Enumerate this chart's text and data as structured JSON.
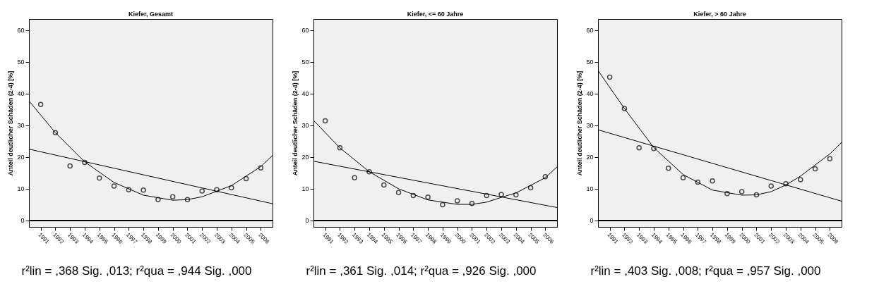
{
  "chart_data": [
    {
      "type": "scatter",
      "title": "Kiefer, Gesamt",
      "ylabel": "Anteil deutlicher Schäden (2-4) [%]",
      "marker": "circle",
      "grid": false,
      "x": [
        1991,
        1992,
        1993,
        1994,
        1995,
        1996,
        1997,
        1998,
        1999,
        2000,
        2001,
        2002,
        2003,
        2004,
        2005,
        2006
      ],
      "series": [
        {
          "color": "#000000",
          "values": [
            36.6,
            27.7,
            17.2,
            18.3,
            13.4,
            10.9,
            9.7,
            9.6,
            6.6,
            7.5,
            6.6,
            9.3,
            9.7,
            10.3,
            13.2,
            16.6
          ]
        },
        {
          "type": "line",
          "marker": "none",
          "line_style": "solid",
          "color": "#000000",
          "x": [
            1990.2,
            2006.8
          ],
          "values": [
            22.5,
            5.3
          ]
        },
        {
          "type": "line",
          "marker": "none",
          "line_style": "solid",
          "color": "#000000",
          "x": [
            1990.2,
            1992,
            1994,
            1996,
            1998,
            2000,
            2001,
            2002,
            2004,
            2006,
            2006.8
          ],
          "values": [
            37.7,
            27.7,
            18.5,
            12.0,
            8.0,
            6.4,
            6.6,
            7.5,
            11.0,
            17.0,
            20.5
          ]
        }
      ],
      "xlim": [
        1990.2,
        2006.8
      ],
      "xticks": [
        1991,
        1992,
        1993,
        1994,
        1995,
        1996,
        1997,
        1998,
        1999,
        2000,
        2001,
        2002,
        2003,
        2004,
        2005,
        2006
      ],
      "ylim": [
        -2,
        63.5
      ],
      "yticks": [
        0,
        10,
        20,
        30,
        40,
        50,
        60
      ],
      "ref_lines": [
        {
          "axis": "y",
          "value": 0,
          "color": "#000000"
        }
      ],
      "annotations": [
        "r²lin = ,368 Sig. ,013; r²qua  = ,944 Sig. ,000"
      ]
    },
    {
      "type": "scatter",
      "title": "Kiefer,  <= 60 Jahre",
      "ylabel": "Anteil deutlicher Schäden (2-4) [%]",
      "marker": "circle",
      "grid": false,
      "x": [
        1991,
        1992,
        1993,
        1994,
        1995,
        1996,
        1997,
        1998,
        1999,
        2000,
        2001,
        2002,
        2003,
        2004,
        2005,
        2006
      ],
      "series": [
        {
          "color": "#000000",
          "values": [
            31.4,
            22.9,
            13.5,
            15.4,
            11.2,
            8.8,
            7.9,
            7.4,
            5.0,
            6.2,
            5.4,
            7.9,
            8.2,
            8.1,
            10.3,
            13.8
          ]
        },
        {
          "type": "line",
          "marker": "none",
          "line_style": "solid",
          "color": "#000000",
          "x": [
            1990.2,
            2006.8
          ],
          "values": [
            18.7,
            4.1
          ]
        },
        {
          "type": "line",
          "marker": "none",
          "line_style": "solid",
          "color": "#000000",
          "x": [
            1990.2,
            1992,
            1994,
            1996,
            1998,
            2000,
            2001,
            2002,
            2003,
            2004,
            2006,
            2006.8
          ],
          "values": [
            31.6,
            22.9,
            15.4,
            10.0,
            6.5,
            5.1,
            5.1,
            5.8,
            7.3,
            8.7,
            13.5,
            16.9
          ]
        }
      ],
      "xlim": [
        1990.2,
        2006.8
      ],
      "xticks": [
        1991,
        1992,
        1993,
        1994,
        1995,
        1996,
        1997,
        1998,
        1999,
        2000,
        2001,
        2002,
        2003,
        2004,
        2005,
        2006
      ],
      "ylim": [
        -2,
        63.5
      ],
      "yticks": [
        0,
        10,
        20,
        30,
        40,
        50,
        60
      ],
      "ref_lines": [
        {
          "axis": "y",
          "value": 0,
          "color": "#000000"
        }
      ],
      "annotations": [
        "r²lin = ,361 Sig. ,014; r²qua  = ,926 Sig. ,000"
      ]
    },
    {
      "type": "scatter",
      "title": "Kiefer,  > 60 Jahre",
      "ylabel": "Anteil deutlicher Schäden (2-4) [%]",
      "marker": "circle",
      "grid": false,
      "x": [
        1991,
        1992,
        1993,
        1994,
        1995,
        1996,
        1997,
        1998,
        1999,
        2000,
        2001,
        2002,
        2003,
        2004,
        2005,
        2006
      ],
      "series": [
        {
          "color": "#000000",
          "values": [
            45.2,
            35.3,
            22.9,
            22.7,
            16.5,
            13.5,
            12.1,
            12.5,
            8.5,
            9.1,
            8.1,
            10.9,
            11.6,
            12.9,
            16.3,
            19.5
          ]
        },
        {
          "type": "line",
          "marker": "none",
          "line_style": "solid",
          "color": "#000000",
          "x": [
            1990.2,
            2006.8
          ],
          "values": [
            28.6,
            6.1
          ]
        },
        {
          "type": "line",
          "marker": "none",
          "line_style": "solid",
          "color": "#000000",
          "x": [
            1990.2,
            1992,
            1994,
            1996,
            1998,
            2000,
            2001,
            2002,
            2003,
            2004,
            2006,
            2006.8
          ],
          "values": [
            47.3,
            35.3,
            23.0,
            14.5,
            9.6,
            8.0,
            8.1,
            9.1,
            11.2,
            14.0,
            21.0,
            24.6
          ]
        }
      ],
      "xlim": [
        1990.2,
        2006.8
      ],
      "xticks": [
        1991,
        1992,
        1993,
        1994,
        1995,
        1996,
        1997,
        1998,
        1999,
        2000,
        2001,
        2002,
        2003,
        2004,
        2005,
        2006
      ],
      "ylim": [
        -2,
        63.5
      ],
      "yticks": [
        0,
        10,
        20,
        30,
        40,
        50,
        60
      ],
      "ref_lines": [
        {
          "axis": "y",
          "value": 0,
          "color": "#000000"
        }
      ],
      "annotations": [
        "r²lin = ,403 Sig. ,008; r²qua  = ,957 Sig. ,000"
      ]
    }
  ]
}
